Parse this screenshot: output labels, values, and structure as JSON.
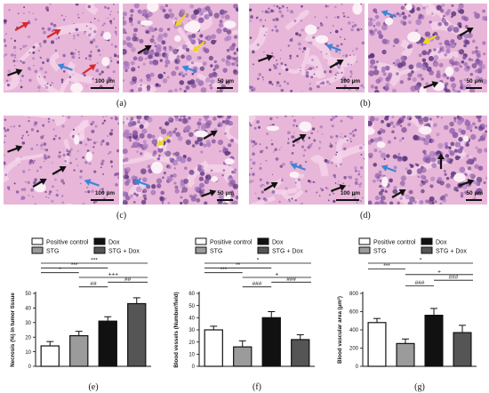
{
  "panels": [
    {
      "label": "(a)",
      "scale_left": "100 µm",
      "scale_right": "50 µm"
    },
    {
      "label": "(b)",
      "scale_left": "100 µm",
      "scale_right": "50 µm"
    },
    {
      "label": "(c)",
      "scale_left": "100 µm",
      "scale_right": "50 µm"
    },
    {
      "label": "(d)",
      "scale_left": "100 µm",
      "scale_right": "50 µm"
    }
  ],
  "legend": {
    "positive_control": "Positive control",
    "stg": "STG",
    "dox": "Dox",
    "stg_dox": "STG + Dox"
  },
  "colors": {
    "positive_control": "#ffffff",
    "stg": "#9b9b9b",
    "dox": "#111111",
    "stg_dox": "#555555",
    "he_pink": "#e8b6d8",
    "he_purple": "#8a5aa6",
    "arrow_red": "#d62a2a",
    "arrow_blue": "#3a86d9",
    "arrow_yellow": "#f2d31f",
    "arrow_black": "#111111"
  },
  "chart_data": [
    {
      "type": "bar",
      "label": "(e)",
      "ylabel": "Necrosis (%) in tumor tissue",
      "categories": [
        "Positive control",
        "STG",
        "Dox",
        "STG + Dox"
      ],
      "values": [
        14,
        21,
        31,
        43
      ],
      "errors": [
        3,
        3,
        3,
        4
      ],
      "ylim": [
        0,
        50
      ],
      "yticks": [
        "0",
        "10",
        "20",
        "30",
        "40",
        "50"
      ],
      "brackets": [
        {
          "from": 0,
          "to": 3,
          "text": "***"
        },
        {
          "from": 0,
          "to": 2,
          "text": "***"
        },
        {
          "from": 0,
          "to": 1,
          "text": "*"
        },
        {
          "from": 1,
          "to": 3,
          "text": "+++"
        },
        {
          "from": 2,
          "to": 3,
          "text": "##"
        },
        {
          "from": 1,
          "to": 2,
          "text": "##"
        }
      ]
    },
    {
      "type": "bar",
      "label": "(f)",
      "ylabel": "Blood vessels (Number/field)",
      "categories": [
        "Positive control",
        "STG",
        "Dox",
        "STG + Dox"
      ],
      "values": [
        30,
        16,
        40,
        22
      ],
      "errors": [
        3,
        5,
        5,
        4
      ],
      "ylim": [
        0,
        60
      ],
      "yticks": [
        "0",
        "10",
        "20",
        "30",
        "40",
        "50",
        "60"
      ],
      "brackets": [
        {
          "from": 0,
          "to": 3,
          "text": "*"
        },
        {
          "from": 0,
          "to": 2,
          "text": "**"
        },
        {
          "from": 0,
          "to": 1,
          "text": "***"
        },
        {
          "from": 1,
          "to": 3,
          "text": "+"
        },
        {
          "from": 2,
          "to": 3,
          "text": "###"
        },
        {
          "from": 1,
          "to": 2,
          "text": "###"
        }
      ]
    },
    {
      "type": "bar",
      "label": "(g)",
      "ylabel": "Blood vascular area (µm²)",
      "categories": [
        "Positive control",
        "STG",
        "Dox",
        "STG + Dox"
      ],
      "values": [
        480,
        250,
        560,
        370
      ],
      "errors": [
        45,
        50,
        75,
        80
      ],
      "ylim": [
        0,
        800
      ],
      "yticks": [
        "0",
        "200",
        "400",
        "600",
        "800"
      ],
      "brackets": [
        {
          "from": 0,
          "to": 3,
          "text": "*"
        },
        {
          "from": 0,
          "to": 1,
          "text": "***"
        },
        {
          "from": 1,
          "to": 3,
          "text": "+"
        },
        {
          "from": 2,
          "to": 3,
          "text": "###"
        },
        {
          "from": 1,
          "to": 2,
          "text": "###"
        }
      ]
    }
  ]
}
